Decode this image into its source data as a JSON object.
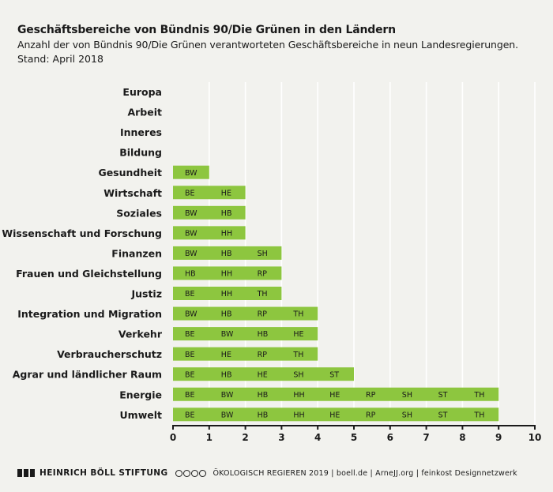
{
  "header": {
    "title": "Geschäftsbereiche von Bündnis 90/Die Grünen in den Ländern",
    "subtitle": "Anzahl der von Bündnis 90/Die Grünen verantworteten Geschäftsbereiche in neun Landesregierungen.",
    "stand": "Stand: April 2018"
  },
  "footer": {
    "org": "HEINRICH BÖLL STIFTUNG",
    "credits": "ÖKOLOGISCH REGIEREN 2019 | boell.de | ArneJJ.org | feinkost Designnetzwerk"
  },
  "colors": {
    "bar": "#8dc63f",
    "background": "#f2f2ee",
    "text": "#1a1a1a"
  },
  "chart_data": {
    "type": "bar",
    "orientation": "horizontal",
    "xlim": [
      0,
      10
    ],
    "xticks": [
      "0",
      "1",
      "2",
      "3",
      "4",
      "5",
      "6",
      "7",
      "8",
      "9",
      "10"
    ],
    "grid": true,
    "categories": [
      "Europa",
      "Arbeit",
      "Inneres",
      "Bildung",
      "Gesundheit",
      "Wirtschaft",
      "Soziales",
      "Wissenschaft und Forschung",
      "Finanzen",
      "Frauen und Gleichstellung",
      "Justiz",
      "Integration und Migration",
      "Verkehr",
      "Verbraucherschutz",
      "Agrar und ländlicher Raum",
      "Energie",
      "Umwelt"
    ],
    "values": [
      0,
      0,
      0,
      0,
      1,
      2,
      2,
      2,
      3,
      3,
      3,
      4,
      4,
      4,
      5,
      9,
      9
    ],
    "segments": [
      [],
      [],
      [],
      [],
      [
        "BW"
      ],
      [
        "BE",
        "HE"
      ],
      [
        "BW",
        "HB"
      ],
      [
        "BW",
        "HH"
      ],
      [
        "BW",
        "HB",
        "SH"
      ],
      [
        "HB",
        "HH",
        "RP"
      ],
      [
        "BE",
        "HH",
        "TH"
      ],
      [
        "BW",
        "HB",
        "RP",
        "TH"
      ],
      [
        "BE",
        "BW",
        "HB",
        "HE"
      ],
      [
        "BE",
        "HE",
        "RP",
        "TH"
      ],
      [
        "BE",
        "HB",
        "HE",
        "SH",
        "ST"
      ],
      [
        "BE",
        "BW",
        "HB",
        "HH",
        "HE",
        "RP",
        "SH",
        "ST",
        "TH"
      ],
      [
        "BE",
        "BW",
        "HB",
        "HH",
        "HE",
        "RP",
        "SH",
        "ST",
        "TH"
      ]
    ]
  }
}
